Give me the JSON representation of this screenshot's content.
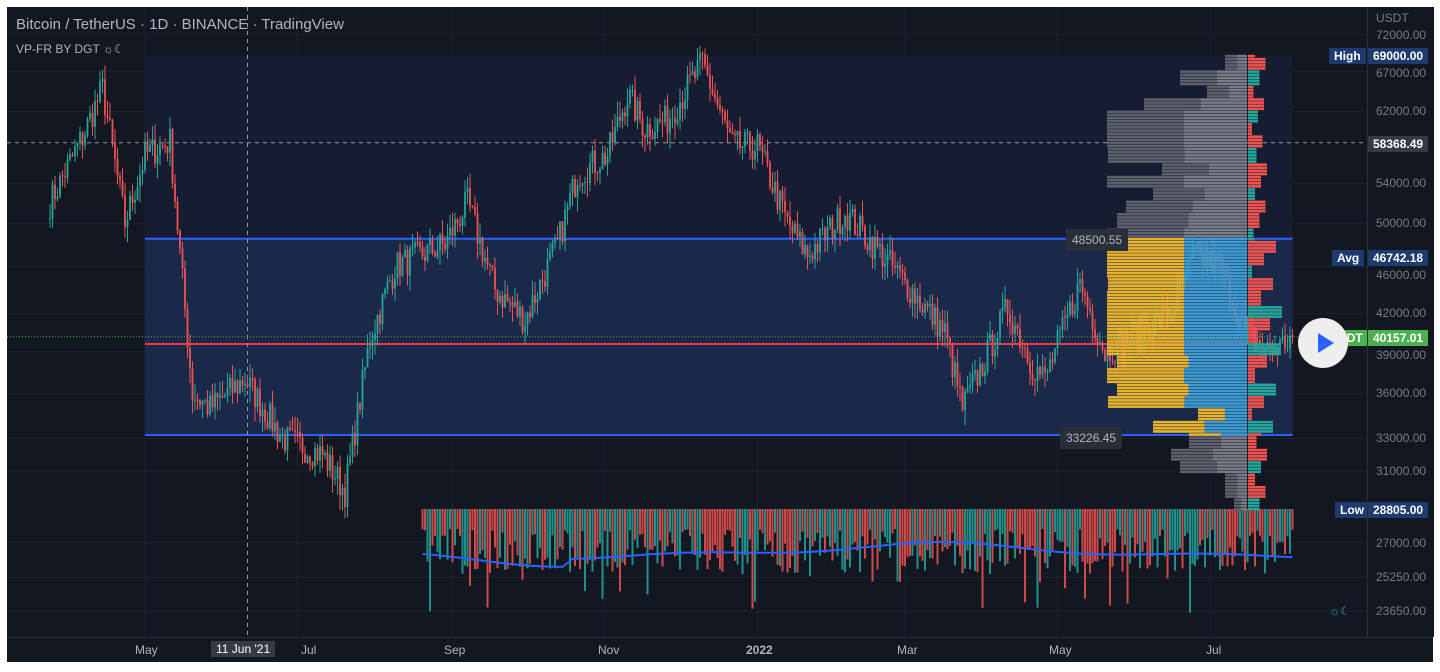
{
  "header": {
    "title": "Bitcoin / TetherUS · 1D · BINANCE · TradingView",
    "indicator": "VP-FR BY DGT ☼☾"
  },
  "price_axis": {
    "unit": "USDT",
    "ticks": [
      "72000.00",
      "67000.00",
      "62000.00",
      "54000.00",
      "50000.00",
      "46000.00",
      "42000.00",
      "39000.00",
      "36000.00",
      "33000.00",
      "31000.00",
      "27000.00",
      "25250.00",
      "23650.00"
    ]
  },
  "tags": {
    "high_label": "High",
    "high": "69000.00",
    "crosshair": "58368.49",
    "avg_label": "Avg",
    "avg": "46742.18",
    "last_label": "USDT",
    "last": "40157.01",
    "low_label": "Low",
    "low": "28805.00",
    "range_top": "48500.55",
    "range_bottom": "33226.45"
  },
  "time_axis": {
    "labels": [
      "May",
      "Jul",
      "Sep",
      "Nov",
      "2022",
      "Mar",
      "May",
      "Jul"
    ],
    "crosshair": "11 Jun '21"
  },
  "colors": {
    "bg": "#131722",
    "up": "#26a69a",
    "down": "#ef5350",
    "range": "#2962ff",
    "poc": "#f23645",
    "vp_yellow": "#e8b22c",
    "vp_blue": "#3d9bd1"
  },
  "chart_data": {
    "type": "candlestick",
    "title": "Bitcoin / TetherUS 1D BINANCE",
    "ylabel": "USDT",
    "yscale": "log",
    "ylim": [
      22500,
      72500
    ],
    "x_unit": "days since 2021-05-01",
    "waypoints": [
      [
        -38,
        52000
      ],
      [
        -25,
        59000
      ],
      [
        -17,
        64800
      ],
      [
        -8,
        50000
      ],
      [
        0,
        57000
      ],
      [
        10,
        58500
      ],
      [
        19,
        36000
      ],
      [
        26,
        35000
      ],
      [
        40,
        37000
      ],
      [
        55,
        33000
      ],
      [
        71,
        32000
      ],
      [
        80,
        29800
      ],
      [
        90,
        40000
      ],
      [
        100,
        46000
      ],
      [
        120,
        48000
      ],
      [
        129,
        52000
      ],
      [
        140,
        44000
      ],
      [
        152,
        41500
      ],
      [
        165,
        48000
      ],
      [
        173,
        55000
      ],
      [
        185,
        57000
      ],
      [
        193,
        64000
      ],
      [
        200,
        60000
      ],
      [
        209,
        61000
      ],
      [
        223,
        68000
      ],
      [
        235,
        58000
      ],
      [
        245,
        58000
      ],
      [
        257,
        50000
      ],
      [
        265,
        47000
      ],
      [
        280,
        51000
      ],
      [
        295,
        47000
      ],
      [
        310,
        43000
      ],
      [
        320,
        40500
      ],
      [
        327,
        35000
      ],
      [
        335,
        38000
      ],
      [
        345,
        42500
      ],
      [
        355,
        38000
      ],
      [
        360,
        37000
      ],
      [
        374,
        44500
      ],
      [
        384,
        39000
      ],
      [
        394,
        40000
      ],
      [
        410,
        42000
      ],
      [
        420,
        47000
      ],
      [
        430,
        46000
      ],
      [
        440,
        40500
      ],
      [
        450,
        39000
      ],
      [
        459,
        40100
      ]
    ],
    "high": 69000,
    "low": 28805,
    "avg": 46742.18,
    "last": 40157.01,
    "range_levels": [
      48500.55,
      33226.45
    ]
  }
}
